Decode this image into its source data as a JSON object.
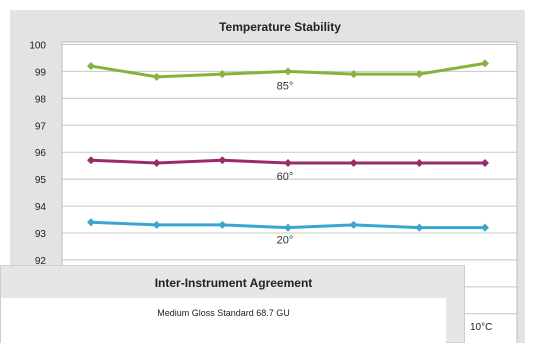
{
  "chart_data": {
    "type": "line",
    "title": "Temperature Stability",
    "yticks": [
      93,
      94,
      95,
      96,
      97,
      98,
      99,
      100
    ],
    "partial_tick": "92",
    "ylim": [
      92,
      100
    ],
    "x": [
      1,
      2,
      3,
      4,
      5,
      6,
      7
    ],
    "grid": true,
    "series": [
      {
        "name": "85°",
        "color": "#86b33a",
        "values": [
          99.2,
          98.8,
          98.9,
          99.0,
          98.9,
          98.9,
          99.3
        ]
      },
      {
        "name": "60°",
        "color": "#9a2a6b",
        "values": [
          95.7,
          95.6,
          95.7,
          95.6,
          95.6,
          95.6,
          95.6
        ]
      },
      {
        "name": "20°",
        "color": "#3aa6cf",
        "values": [
          93.4,
          93.3,
          93.3,
          93.2,
          93.3,
          93.2,
          93.2
        ]
      }
    ]
  },
  "overlay": {
    "title": "Inter-Instrument Agreement",
    "subtitle": "Medium Gloss Standard 68.7 GU"
  },
  "corner_label": "10°C"
}
